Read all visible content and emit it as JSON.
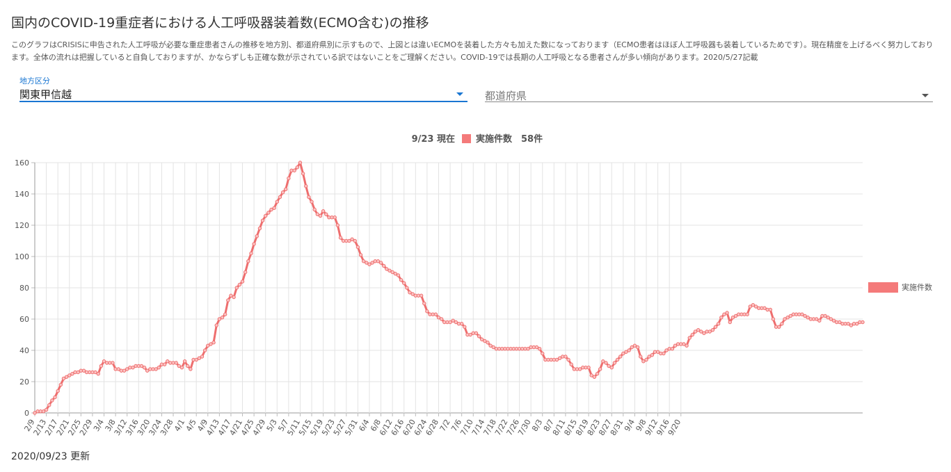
{
  "page": {
    "title": "国内のCOVID-19重症者における人工呼吸器装着数(ECMO含む)の推移",
    "description": "このグラフはCRISISに申告された人工呼吸が必要な重症患者さんの推移を地方別、都道府県別に示すもので、上図とは違いECMOを装着した方々も加えた数になっております（ECMO患者はほぼ人工呼吸器も装着しているためです）。現在精度を上げるべく努力しております。全体の流れは把握していると自負しておりますが、かならずしも正確な数が示されている訳ではないことをご理解ください。COVID-19では長期の人工呼吸となる患者さんが多い傾向があります。2020/5/27記載",
    "updated": "2020/09/23 更新"
  },
  "filters": {
    "region_label": "地方区分",
    "region_value": "関東甲信越",
    "prefecture_placeholder": "都道府県"
  },
  "colors": {
    "accent": "#1976d2",
    "series": "#f47a7a",
    "series_line": "#ee6e6e",
    "grid": "#e3e3e3"
  },
  "icons": {
    "dropdown": "triangle-down-icon"
  },
  "chart_data": {
    "type": "line",
    "header_date": "9/23 現在",
    "header_series": "実施件数",
    "header_value": "58件",
    "xlabel": "",
    "ylabel": "",
    "ylim": [
      0,
      160
    ],
    "yticks": [
      0,
      20,
      40,
      60,
      80,
      100,
      120,
      140,
      160
    ],
    "grid": true,
    "legend_position": "right",
    "x_start": "2/9",
    "x_tick_labels": [
      "2/9",
      "2/13",
      "2/17",
      "2/21",
      "2/25",
      "2/29",
      "3/4",
      "3/8",
      "3/12",
      "3/16",
      "3/20",
      "3/24",
      "3/28",
      "4/1",
      "4/5",
      "4/9",
      "4/13",
      "4/17",
      "4/21",
      "4/25",
      "4/29",
      "5/3",
      "5/7",
      "5/11",
      "5/15",
      "5/19",
      "5/23",
      "5/27",
      "5/31",
      "6/4",
      "6/8",
      "6/12",
      "6/16",
      "6/20",
      "6/24",
      "6/28",
      "7/2",
      "7/6",
      "7/10",
      "7/14",
      "7/18",
      "7/22",
      "7/26",
      "7/30",
      "8/3",
      "8/7",
      "8/11",
      "8/15",
      "8/19",
      "8/23",
      "8/27",
      "8/31",
      "9/4",
      "9/8",
      "9/12",
      "9/16",
      "9/20"
    ],
    "series": [
      {
        "name": "実施件数",
        "values": [
          0,
          1,
          1,
          1,
          2,
          5,
          8,
          10,
          14,
          18,
          22,
          23,
          24,
          25,
          26,
          26,
          27,
          27,
          26,
          26,
          26,
          26,
          25,
          30,
          33,
          32,
          32,
          32,
          28,
          28,
          27,
          27,
          28,
          29,
          29,
          30,
          30,
          30,
          29,
          27,
          28,
          28,
          28,
          29,
          31,
          31,
          33,
          32,
          32,
          32,
          30,
          29,
          33,
          30,
          28,
          34,
          34,
          35,
          36,
          40,
          43,
          44,
          45,
          56,
          60,
          61,
          63,
          72,
          75,
          74,
          80,
          82,
          84,
          90,
          97,
          102,
          108,
          113,
          118,
          123,
          126,
          128,
          130,
          131,
          135,
          138,
          141,
          143,
          150,
          155,
          155,
          157,
          160,
          153,
          145,
          138,
          135,
          130,
          127,
          126,
          129,
          127,
          125,
          125,
          125,
          120,
          112,
          110,
          110,
          110,
          111,
          110,
          106,
          101,
          97,
          96,
          95,
          96,
          97,
          97,
          96,
          94,
          92,
          91,
          90,
          89,
          88,
          85,
          83,
          80,
          77,
          76,
          75,
          75,
          75,
          70,
          65,
          63,
          63,
          63,
          61,
          60,
          58,
          58,
          58,
          59,
          58,
          57,
          57,
          55,
          50,
          50,
          51,
          51,
          49,
          47,
          46,
          45,
          43,
          42,
          41,
          41,
          41,
          41,
          41,
          41,
          41,
          41,
          41,
          41,
          41,
          41,
          42,
          42,
          42,
          41,
          38,
          34,
          34,
          34,
          34,
          34,
          35,
          36,
          36,
          34,
          31,
          28,
          28,
          28,
          29,
          29,
          29,
          24,
          23,
          25,
          28,
          33,
          32,
          30,
          29,
          32,
          34,
          36,
          38,
          39,
          40,
          42,
          43,
          42,
          36,
          33,
          34,
          36,
          37,
          39,
          39,
          38,
          38,
          40,
          41,
          41,
          43,
          44,
          44,
          44,
          43,
          48,
          50,
          52,
          53,
          52,
          51,
          52,
          52,
          53,
          55,
          57,
          61,
          63,
          64,
          58,
          61,
          62,
          63,
          63,
          63,
          63,
          68,
          69,
          68,
          67,
          67,
          67,
          66,
          66,
          60,
          55,
          55,
          57,
          60,
          61,
          62,
          63,
          63,
          63,
          63,
          62,
          61,
          60,
          60,
          60,
          59,
          62,
          62,
          61,
          60,
          59,
          58,
          58,
          57,
          57,
          57,
          56,
          57,
          57,
          58,
          58
        ]
      }
    ]
  }
}
